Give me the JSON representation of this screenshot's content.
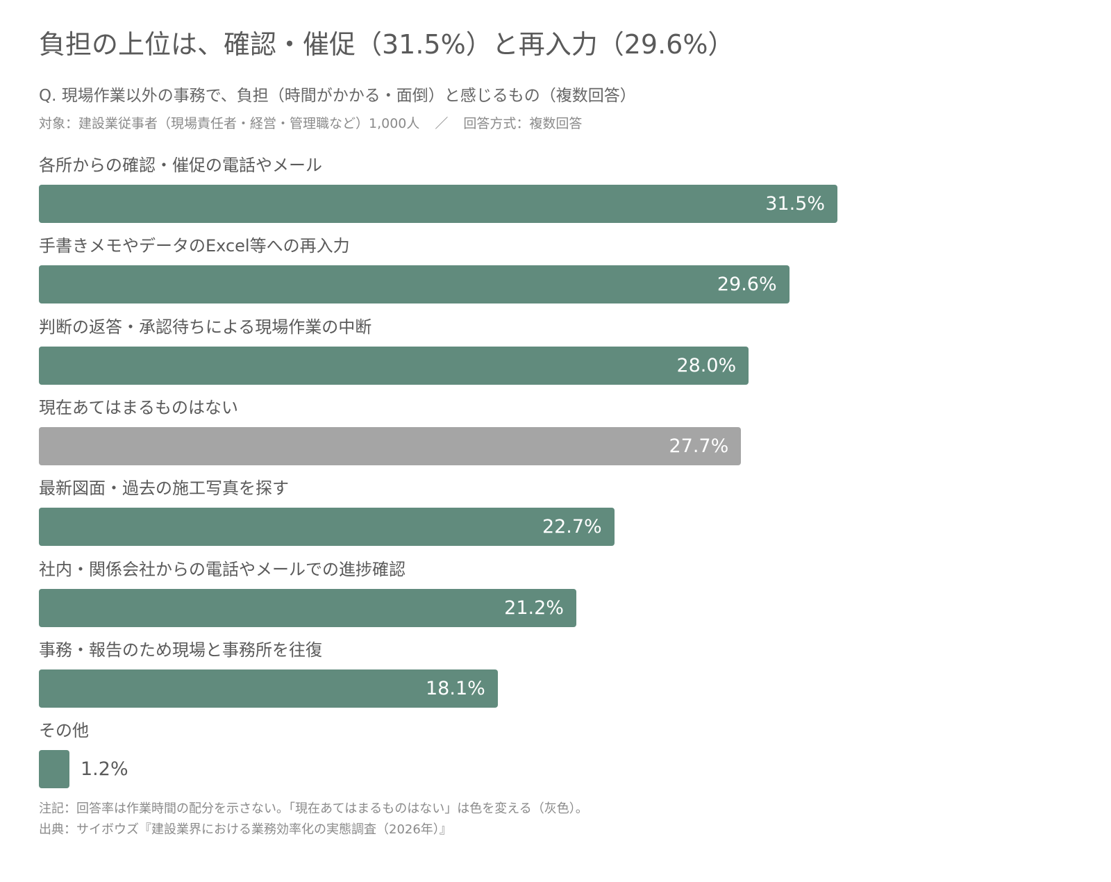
{
  "header": {
    "title": "負担の上位は、確認・催促（31.5%）と再入力（29.6%）",
    "question": "Q. 現場作業以外の事務で、負担（時間がかかる・面倒）と感じるもの（複数回答）",
    "target": "対象：建設業従事者（現場責任者・経営・管理職など）1,000人",
    "separator": "／",
    "method": "回答方式：複数回答"
  },
  "colors": {
    "primary": "#618b7d",
    "none": "#a5a5a5"
  },
  "chart_data": {
    "type": "bar",
    "orientation": "horizontal",
    "unit": "%",
    "categories": [
      "各所からの確認・催促の電話やメール",
      "手書きメモやデータのExcel等への再入力",
      "判断の返答・承認待ちによる現場作業の中断",
      "現在あてはまるものはない",
      "最新図面・過去の施工写真を探す",
      "社内・関係会社からの電話やメールでの進捗確認",
      "事務・報告のため現場と事務所を往復",
      "その他"
    ],
    "values": [
      31.5,
      29.6,
      28.0,
      27.7,
      22.7,
      21.2,
      18.1,
      1.2
    ],
    "value_labels": [
      "31.5%",
      "29.6%",
      "28.0%",
      "27.7%",
      "22.7%",
      "21.2%",
      "18.1%",
      "1.2%"
    ],
    "highlight": [
      false,
      false,
      false,
      true,
      false,
      false,
      false,
      false
    ],
    "xlim": [
      0,
      31.5
    ],
    "grid": false,
    "legend": "none"
  },
  "footer": {
    "note": "注記：回答率は作業時間の配分を示さない。「現在あてはまるものはない」は色を変える（灰色）。",
    "source": "出典：サイボウズ『建設業界における業務効率化の実態調査（2026年）』"
  }
}
